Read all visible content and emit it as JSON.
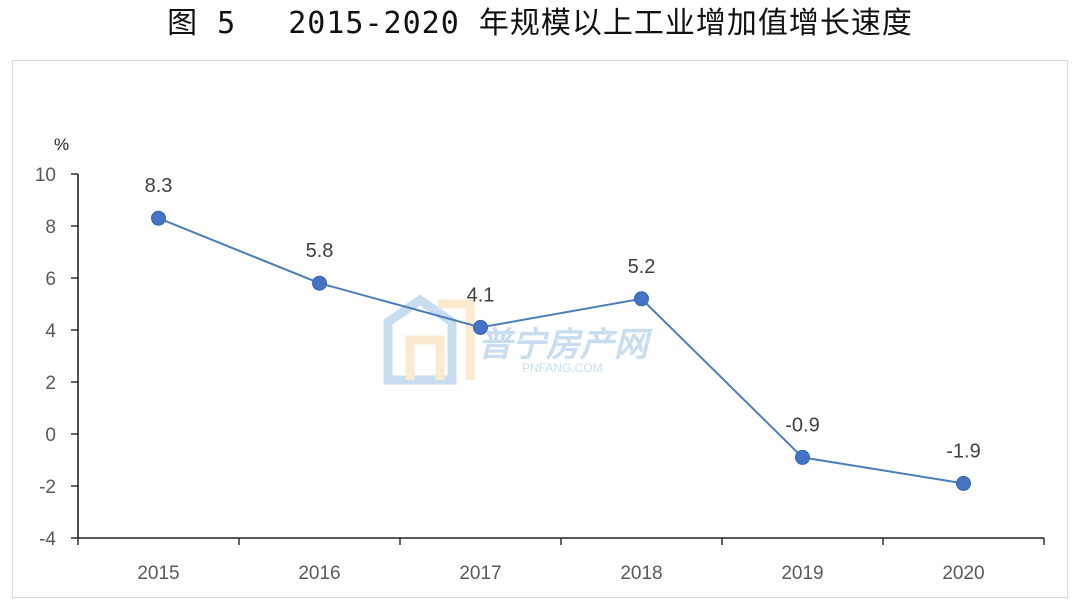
{
  "title": {
    "figure_number": "图 5",
    "text": "2015-2020 年规模以上工业增加值增长速度"
  },
  "chart_data": {
    "type": "line",
    "title": "2015-2020 年规模以上工业增加值增长速度",
    "ylabel": "%",
    "xlabel": "",
    "categories": [
      "2015",
      "2016",
      "2017",
      "2018",
      "2019",
      "2020"
    ],
    "values": [
      8.3,
      5.8,
      4.1,
      5.2,
      -0.9,
      -1.9
    ],
    "data_labels": [
      "8.3",
      "5.8",
      "4.1",
      "5.2",
      "-0.9",
      "-1.9"
    ],
    "ylim": [
      -4,
      10
    ],
    "yticks": [
      10,
      8,
      6,
      4,
      2,
      0,
      -2,
      -4
    ],
    "ytick_labels": [
      "10",
      "8",
      "6",
      "4",
      "2",
      "0",
      "-2",
      "-4"
    ],
    "grid": false,
    "legend": "none",
    "colors": {
      "line": "#4a7ebb",
      "marker": "#4472c4"
    }
  },
  "watermark": {
    "text": "普宁房产网",
    "subtext": "PNFANG.COM",
    "colors": {
      "blue": "#9dc3e6",
      "orange": "#f7d9a8"
    }
  }
}
